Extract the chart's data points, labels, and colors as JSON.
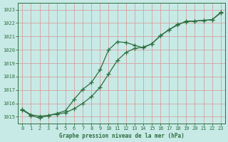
{
  "title": "Graphe pression niveau de la mer (hPa)",
  "bg_color": "#c8eae6",
  "grid_color": "#d4a0a0",
  "line_color": "#2d6e3e",
  "xlim": [
    -0.5,
    23.5
  ],
  "ylim": [
    1014.5,
    1023.5
  ],
  "yticks": [
    1015,
    1016,
    1017,
    1018,
    1019,
    1020,
    1021,
    1022,
    1023
  ],
  "xticks": [
    0,
    1,
    2,
    3,
    4,
    5,
    6,
    7,
    8,
    9,
    10,
    11,
    12,
    13,
    14,
    15,
    16,
    17,
    18,
    19,
    20,
    21,
    22,
    23
  ],
  "series1_x": [
    0,
    1,
    2,
    3,
    4,
    5,
    6,
    7,
    8,
    9,
    10,
    11,
    12,
    13,
    14,
    15,
    16,
    17,
    18,
    19,
    20,
    21,
    22,
    23
  ],
  "series1_y": [
    1015.5,
    1015.1,
    1014.9,
    1015.1,
    1015.25,
    1015.45,
    1016.3,
    1017.05,
    1017.55,
    1018.5,
    1020.0,
    1020.6,
    1020.55,
    1020.35,
    1020.15,
    1020.45,
    1021.05,
    1021.5,
    1021.85,
    1022.15,
    1022.15,
    1022.2,
    1022.25,
    1022.75
  ],
  "series2_x": [
    0,
    1,
    2,
    3,
    4,
    5,
    6,
    7,
    8,
    9,
    10,
    11,
    12,
    13,
    14,
    15,
    16,
    17,
    18,
    19,
    20,
    21,
    22,
    23
  ],
  "series2_y": [
    1015.55,
    1015.15,
    1015.05,
    1015.1,
    1015.2,
    1015.3,
    1015.6,
    1016.0,
    1016.5,
    1017.2,
    1018.2,
    1019.2,
    1019.8,
    1020.1,
    1020.2,
    1020.45,
    1021.05,
    1021.5,
    1021.9,
    1022.1,
    1022.15,
    1022.2,
    1022.25,
    1022.8
  ]
}
